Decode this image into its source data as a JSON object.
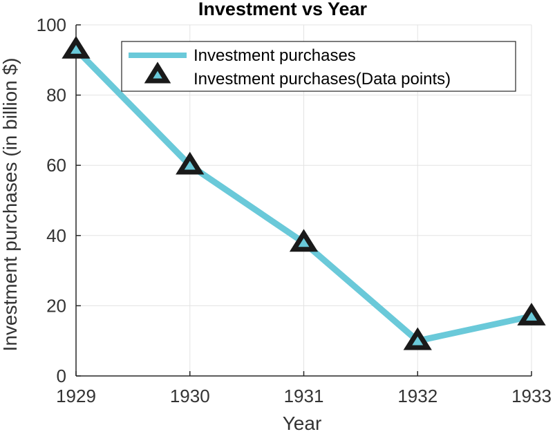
{
  "chart_data": {
    "type": "line",
    "title": "Investment vs Year",
    "xlabel": "Year",
    "ylabel": "Investment purchases (in billion $)",
    "x": [
      1929,
      1930,
      1931,
      1932,
      1933
    ],
    "series": [
      {
        "name": "Investment purchases",
        "values": [
          93,
          60,
          38,
          10,
          17
        ],
        "color": "#6ac9d9"
      }
    ],
    "markers": {
      "name": "Investment purchases(Data points)",
      "shape": "triangle",
      "edge_color": "#1a1a1a",
      "face_color": "#6ac9d9"
    },
    "xlim": [
      1929,
      1933
    ],
    "ylim": [
      0,
      100
    ],
    "xticks": [
      "1929",
      "1930",
      "1931",
      "1932",
      "1933"
    ],
    "yticks": [
      "0",
      "20",
      "40",
      "60",
      "80",
      "100"
    ],
    "grid": true,
    "legend_position": "top-right"
  }
}
